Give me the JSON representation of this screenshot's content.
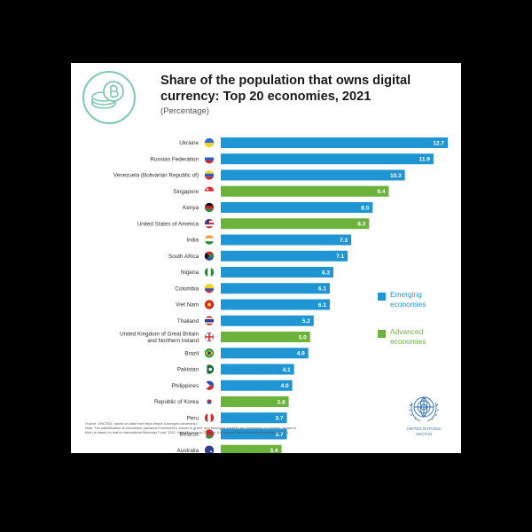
{
  "header": {
    "title_line1": "Share of the population that owns digital",
    "title_line2": "currency: Top 20 economies, 2021",
    "subtitle": "(Percentage)"
  },
  "colors": {
    "emerging": "#1f96d3",
    "advanced": "#6cb33e",
    "page_background": "#000000",
    "card_background": "#ffffff"
  },
  "chart_data": {
    "type": "bar",
    "orientation": "horizontal",
    "title": "Share of the population that owns digital currency: Top 20 economies, 2021",
    "subtitle": "(Percentage)",
    "xlim": [
      0,
      12.7
    ],
    "grid": false,
    "legend_position": "right",
    "categories": [
      [
        "Ukraine"
      ],
      [
        "Russian Federation"
      ],
      [
        "Venezuela (Bolivarian Republic of)"
      ],
      [
        "Singapore"
      ],
      [
        "Kenya"
      ],
      [
        "United States of America"
      ],
      [
        "India"
      ],
      [
        "South Africa"
      ],
      [
        "Nigeria"
      ],
      [
        "Colombia"
      ],
      [
        "Viet Nam"
      ],
      [
        "Thailand"
      ],
      [
        "United Kingdom of Great Britain",
        "and Northern Ireland"
      ],
      [
        "Brazil"
      ],
      [
        "Pakistan"
      ],
      [
        "Philippines"
      ],
      [
        "Republic of Korea"
      ],
      [
        "Peru"
      ],
      [
        "Belarus"
      ],
      [
        "Australia"
      ]
    ],
    "values": [
      12.7,
      11.9,
      10.3,
      9.4,
      8.5,
      8.3,
      7.3,
      7.1,
      6.3,
      6.1,
      6.1,
      5.2,
      5.0,
      4.9,
      4.1,
      4.0,
      3.8,
      3.7,
      3.7,
      3.4
    ],
    "value_labels": [
      "12.7",
      "11.9",
      "10.3",
      "9.4",
      "8.5",
      "8.3",
      "7.3",
      "7.1",
      "6.3",
      "6.1",
      "6.1",
      "5.2",
      "5.0",
      "4.9",
      "4.1",
      "4.0",
      "3.8",
      "3.7",
      "3.7",
      "3.4"
    ],
    "groups": [
      "emerging",
      "emerging",
      "emerging",
      "advanced",
      "emerging",
      "advanced",
      "emerging",
      "emerging",
      "emerging",
      "emerging",
      "emerging",
      "emerging",
      "advanced",
      "emerging",
      "emerging",
      "emerging",
      "advanced",
      "emerging",
      "emerging",
      "advanced"
    ],
    "flags": [
      "ukraine-flag-icon",
      "russia-flag-icon",
      "venezuela-flag-icon",
      "singapore-flag-icon",
      "kenya-flag-icon",
      "usa-flag-icon",
      "india-flag-icon",
      "south-africa-flag-icon",
      "nigeria-flag-icon",
      "colombia-flag-icon",
      "vietnam-flag-icon",
      "thailand-flag-icon",
      "uk-flag-icon",
      "brazil-flag-icon",
      "pakistan-flag-icon",
      "philippines-flag-icon",
      "korea-flag-icon",
      "peru-flag-icon",
      "belarus-flag-icon",
      "australia-flag-icon"
    ],
    "legend": [
      {
        "key": "emerging",
        "label_line1": "Emerging",
        "label_line2": "economies"
      },
      {
        "key": "advanced",
        "label_line1": "Advanced",
        "label_line2": "economies"
      }
    ]
  },
  "footer": {
    "source": "Source: UNCTAD, based on data from https://triple-a.io/crypto-ownership/.",
    "note_line1": "Note: The classification of economies (advanced economies, shown in green, and emerging markets and developing economies, shown in",
    "note_line2": "blue) is based on that in International Monetary Fund, 2021, World Economic Outlook: A Long and Difficult Ascent (Washington, D.C.).",
    "org_line1": "UNITED NATIONS",
    "org_line2": "UNCTAD"
  }
}
